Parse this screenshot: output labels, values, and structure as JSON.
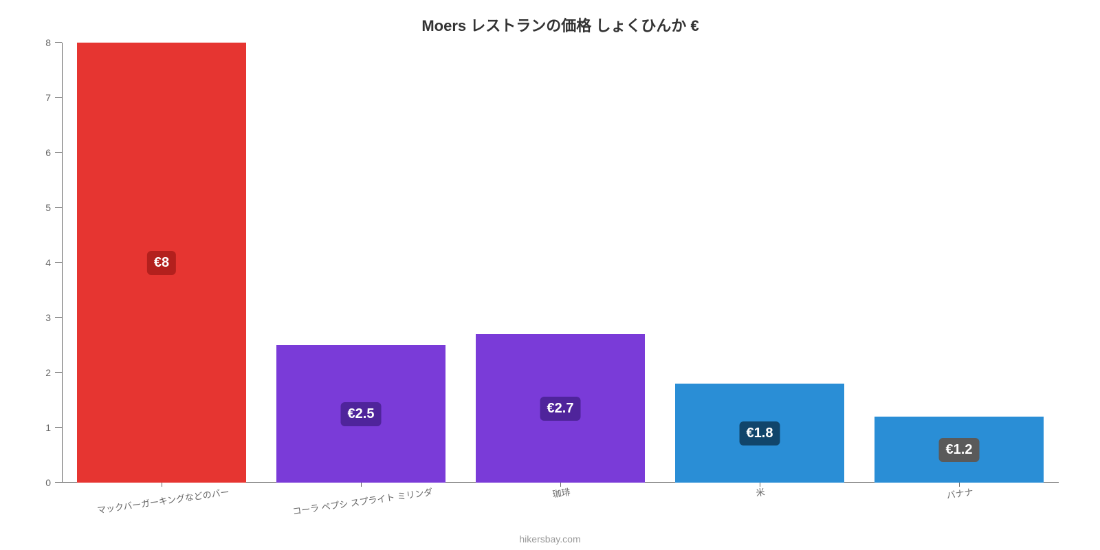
{
  "chart": {
    "type": "bar",
    "title": "Moers レストランの価格 しょくひんか €",
    "title_fontsize": 22,
    "title_color": "#333333",
    "background_color": "#ffffff",
    "axis_color": "#666666",
    "y": {
      "min": 0,
      "max": 8,
      "step": 1,
      "label_color": "#666666",
      "label_fontsize": 14
    },
    "x_label_rotation_deg": -8,
    "x_label_color": "#666666",
    "x_label_fontsize": 13,
    "bar_width_pct": 85,
    "value_label": {
      "fontsize": 20,
      "text_color": "#ffffff",
      "border_radius": 6,
      "padding": "6px 10px"
    },
    "categories": [
      "マックバーガーキングなどのバー",
      "コーラ ペプシ スプライト ミリンダ",
      "珈琲",
      "米",
      "バナナ"
    ],
    "values": [
      8,
      2.5,
      2.7,
      1.8,
      1.2
    ],
    "value_labels": [
      "€8",
      "€2.5",
      "€2.7",
      "€1.8",
      "€1.2"
    ],
    "bar_colors": [
      "#e63531",
      "#7a3bd8",
      "#7a3bd8",
      "#2a8ed6",
      "#2a8ed6"
    ],
    "badge_colors": [
      "#b3201d",
      "#4f249b",
      "#4f249b",
      "#11456b",
      "#5a5a5a"
    ],
    "credit": "hikersbay.com",
    "credit_color": "#999999",
    "credit_fontsize": 14
  }
}
